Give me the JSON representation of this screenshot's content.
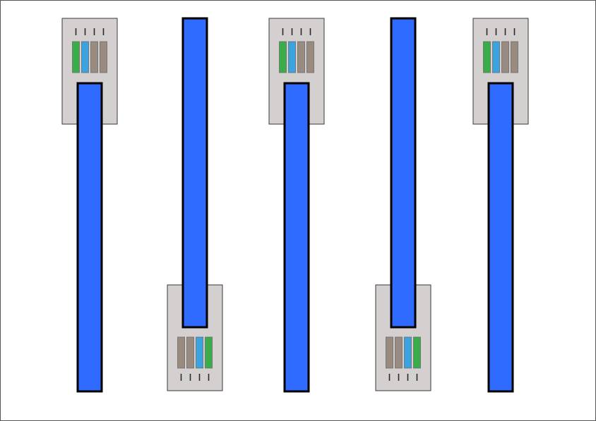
{
  "diagram": {
    "colors": {
      "background": "#ffffff",
      "border": "#555555",
      "connector_body": "#d4d0cf",
      "connector_outline": "#3a3a3a",
      "contact_pin": "#2a2a2a",
      "cable_fill": "#2f6bff",
      "cable_outline": "#000000",
      "wire_green": "#3aad4a",
      "wire_blue": "#3aa3e0",
      "wire_brown": "#9a8b80"
    },
    "connectors": [
      {
        "id": "plug-1",
        "orientation": "top",
        "wire_order": [
          "green",
          "blue",
          "brown",
          "brown"
        ]
      },
      {
        "id": "plug-2",
        "orientation": "bottom",
        "wire_order": [
          "brown",
          "brown",
          "blue",
          "green"
        ]
      },
      {
        "id": "plug-3",
        "orientation": "top",
        "wire_order": [
          "green",
          "blue",
          "brown",
          "brown"
        ]
      },
      {
        "id": "plug-4",
        "orientation": "bottom",
        "wire_order": [
          "brown",
          "brown",
          "blue",
          "green"
        ]
      },
      {
        "id": "plug-5",
        "orientation": "top",
        "wire_order": [
          "green",
          "blue",
          "brown",
          "brown"
        ]
      }
    ]
  }
}
